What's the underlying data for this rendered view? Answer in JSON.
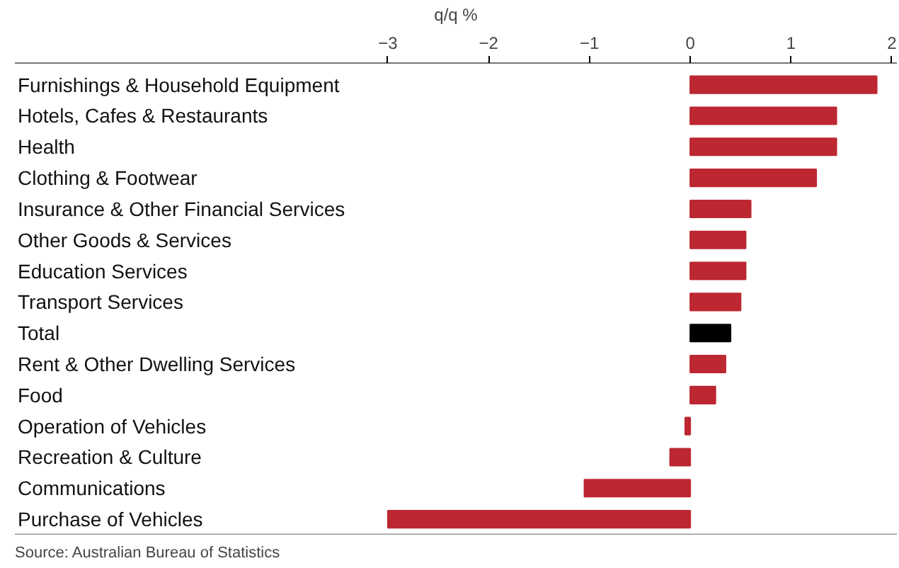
{
  "chart_data": {
    "type": "bar",
    "orientation": "horizontal",
    "xlabel": "q/q %",
    "categories": [
      "Furnishings & Household Equipment",
      "Hotels, Cafes & Restaurants",
      "Health",
      "Clothing & Footwear",
      "Insurance & Other Financial Services",
      "Other Goods & Services",
      "Education Services",
      "Transport Services",
      "Total",
      "Rent & Other Dwelling Services",
      "Food",
      "Operation of Vehicles",
      "Recreation & Culture",
      "Communications",
      "Purchase of Vehicles"
    ],
    "values": [
      1.85,
      1.45,
      1.45,
      1.25,
      0.6,
      0.55,
      0.55,
      0.5,
      0.4,
      0.35,
      0.25,
      -0.05,
      -0.2,
      -1.05,
      -3.0
    ],
    "colors": [
      "#bc2731",
      "#bc2731",
      "#bc2731",
      "#bc2731",
      "#bc2731",
      "#bc2731",
      "#bc2731",
      "#bc2731",
      "#000000",
      "#bc2731",
      "#bc2731",
      "#bc2731",
      "#bc2731",
      "#bc2731",
      "#bc2731"
    ],
    "xlim": [
      -6.7,
      2.05
    ],
    "xticks": [
      -3,
      -2,
      -1,
      0,
      1,
      2
    ],
    "grid": false,
    "annotations": [
      "Source: Australian Bureau of Statistics"
    ]
  }
}
